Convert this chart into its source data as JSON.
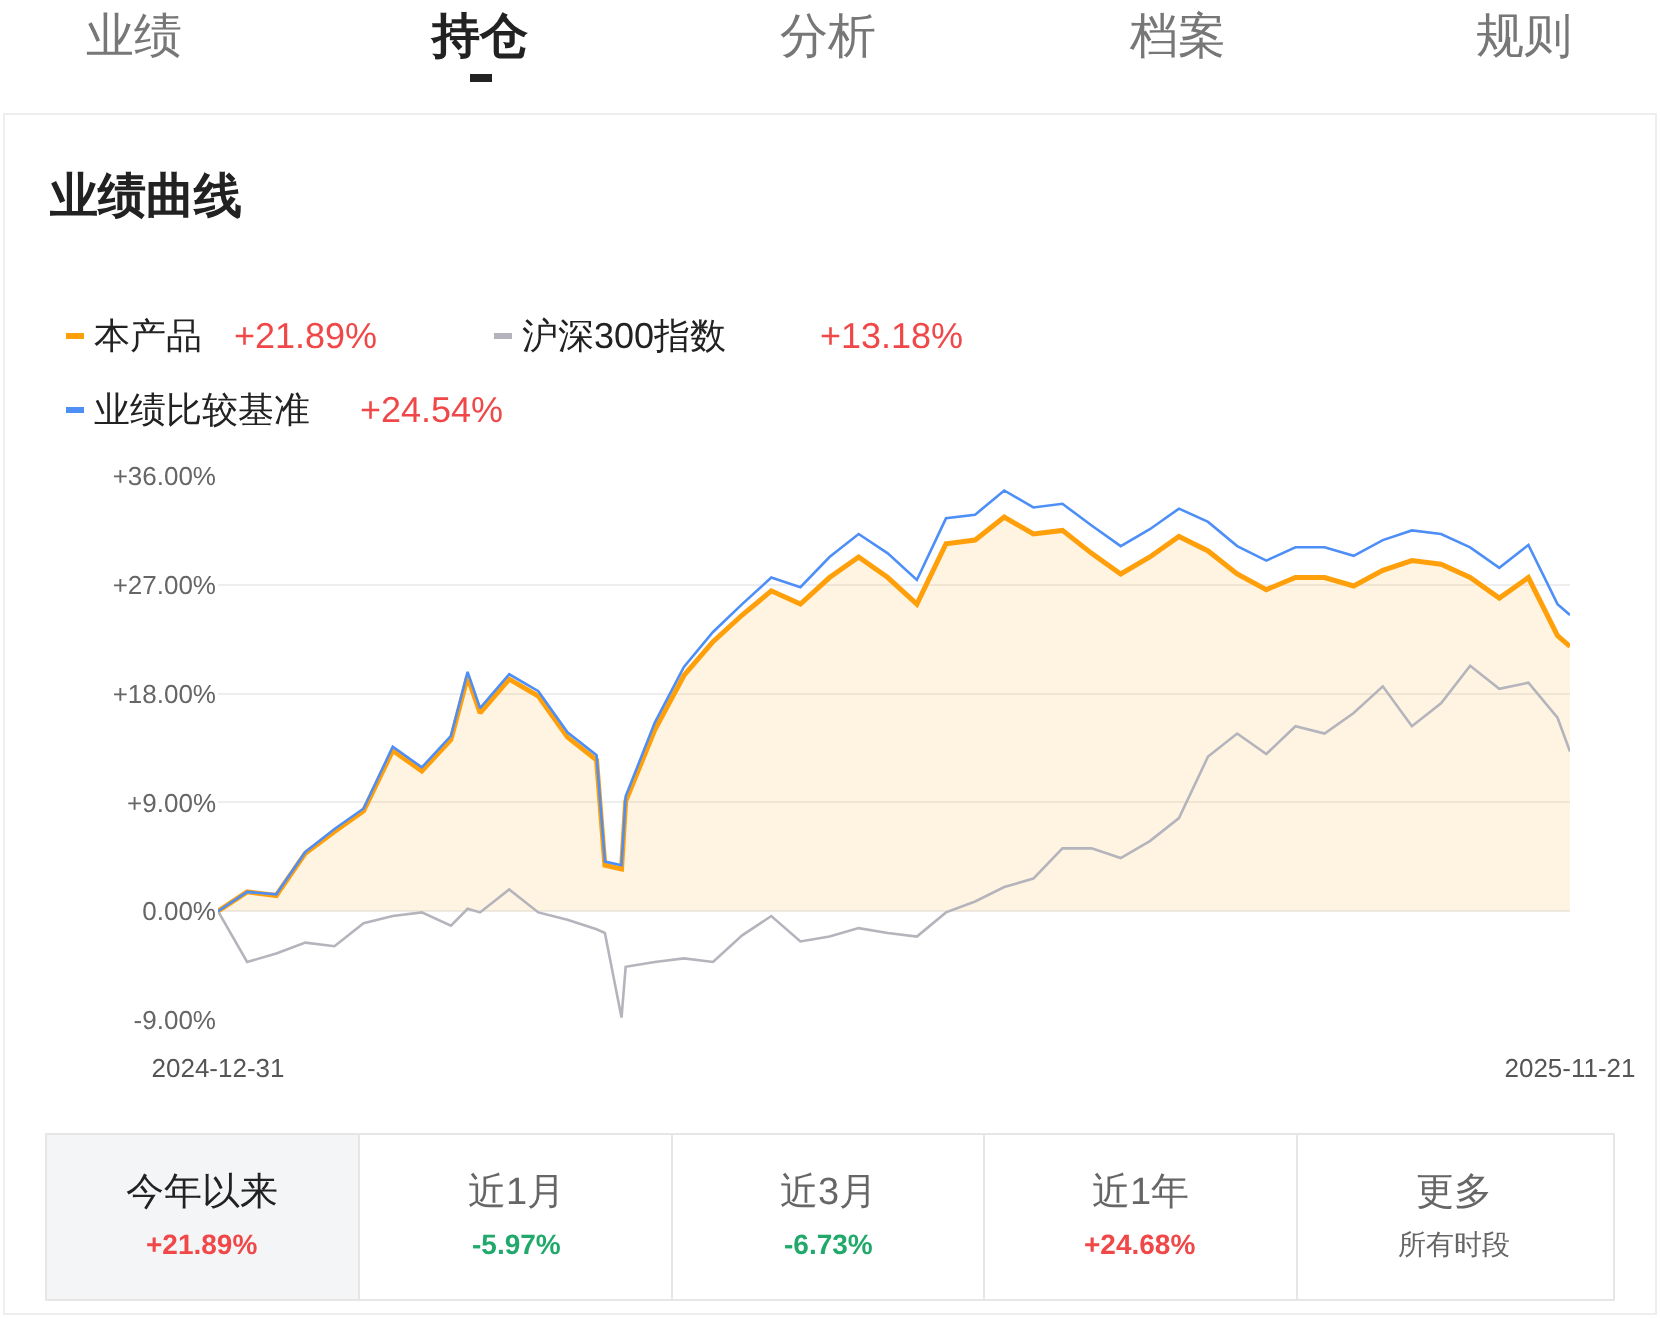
{
  "chart_data": {
    "type": "line",
    "title": "业绩曲线",
    "x": [
      "2024-12-31",
      "2025-01-07",
      "2025-01-14",
      "2025-01-21",
      "2025-01-28",
      "2025-02-04",
      "2025-02-11",
      "2025-02-18",
      "2025-02-25",
      "2025-03-01",
      "2025-03-04",
      "2025-03-11",
      "2025-03-18",
      "2025-03-25",
      "2025-04-01",
      "2025-04-03",
      "2025-04-07",
      "2025-04-08",
      "2025-04-15",
      "2025-04-22",
      "2025-04-29",
      "2025-05-06",
      "2025-05-13",
      "2025-05-20",
      "2025-05-27",
      "2025-06-03",
      "2025-06-10",
      "2025-06-17",
      "2025-06-24",
      "2025-07-01",
      "2025-07-08",
      "2025-07-15",
      "2025-07-22",
      "2025-07-29",
      "2025-08-05",
      "2025-08-12",
      "2025-08-19",
      "2025-08-26",
      "2025-09-02",
      "2025-09-09",
      "2025-09-16",
      "2025-09-23",
      "2025-09-30",
      "2025-10-07",
      "2025-10-14",
      "2025-10-21",
      "2025-10-28",
      "2025-11-04",
      "2025-11-11",
      "2025-11-18",
      "2025-11-21"
    ],
    "series": [
      {
        "name": "本产品",
        "type": "area",
        "color": "#ff9f0a",
        "values": [
          0.0,
          1.6,
          1.3,
          4.8,
          6.6,
          8.3,
          13.3,
          11.6,
          14.2,
          19.4,
          16.4,
          19.2,
          17.8,
          14.4,
          12.5,
          3.8,
          3.5,
          9.1,
          15.0,
          19.5,
          22.3,
          24.5,
          26.5,
          25.4,
          27.6,
          29.3,
          27.6,
          25.4,
          30.4,
          30.7,
          32.6,
          31.2,
          31.5,
          29.6,
          27.9,
          29.3,
          31.0,
          29.8,
          27.9,
          26.6,
          27.6,
          27.6,
          26.9,
          28.2,
          29.0,
          28.7,
          27.6,
          25.9,
          27.6,
          22.8,
          21.9
        ]
      },
      {
        "name": "沪深300指数",
        "color": "#b4b4bc",
        "values": [
          0.0,
          -4.2,
          -3.5,
          -2.6,
          -2.9,
          -1.0,
          -0.4,
          -0.1,
          -1.2,
          0.2,
          -0.1,
          1.8,
          -0.1,
          -0.7,
          -1.5,
          -1.8,
          -8.8,
          -4.6,
          -4.2,
          -3.9,
          -4.2,
          -2.0,
          -0.4,
          -2.5,
          -2.1,
          -1.4,
          -1.8,
          -2.1,
          -0.1,
          0.8,
          2.0,
          2.7,
          5.2,
          5.2,
          4.4,
          5.8,
          7.7,
          12.8,
          14.7,
          13.0,
          15.3,
          14.7,
          16.4,
          18.6,
          15.3,
          17.2,
          20.3,
          18.4,
          18.9,
          16.0,
          13.2
        ]
      },
      {
        "name": "业绩比较基准",
        "color": "#4d8ff7",
        "values": [
          0.0,
          1.6,
          1.4,
          4.9,
          6.8,
          8.5,
          13.6,
          11.9,
          14.5,
          19.8,
          16.8,
          19.6,
          18.2,
          14.8,
          12.9,
          4.1,
          3.8,
          9.5,
          15.6,
          20.2,
          23.1,
          25.4,
          27.6,
          26.8,
          29.3,
          31.2,
          29.6,
          27.4,
          32.5,
          32.8,
          34.8,
          33.4,
          33.7,
          31.9,
          30.2,
          31.6,
          33.3,
          32.2,
          30.2,
          29.0,
          30.1,
          30.1,
          29.4,
          30.7,
          31.5,
          31.2,
          30.1,
          28.4,
          30.3,
          25.4,
          24.5
        ]
      }
    ],
    "xlim": [
      "2024-12-31",
      "2025-11-21"
    ],
    "xticks": [
      {
        "value": "2024-12-31",
        "label": "2024-12-31"
      },
      {
        "value": "2025-11-21",
        "label": "2025-11-21"
      }
    ],
    "ylim": [
      -9,
      36
    ],
    "yticks": [
      {
        "value": -9,
        "label": "-9.00%"
      },
      {
        "value": 0,
        "label": "0.00%"
      },
      {
        "value": 9,
        "label": "+9.00%"
      },
      {
        "value": 18,
        "label": "+18.00%"
      },
      {
        "value": 27,
        "label": "+27.00%"
      },
      {
        "value": 36,
        "label": "+36.00%"
      }
    ],
    "grid": "y",
    "legend": "top left",
    "annotations": [
      "业绩",
      "持仓",
      "分析",
      "档案",
      "规则",
      "+21.89%",
      "+13.18%",
      "+24.54%",
      "今年以来",
      "+21.89%",
      "近1月",
      "-5.97%",
      "近3月",
      "-6.73%",
      "近1年",
      "+24.68%",
      "更多",
      "所有时段"
    ]
  }
}
